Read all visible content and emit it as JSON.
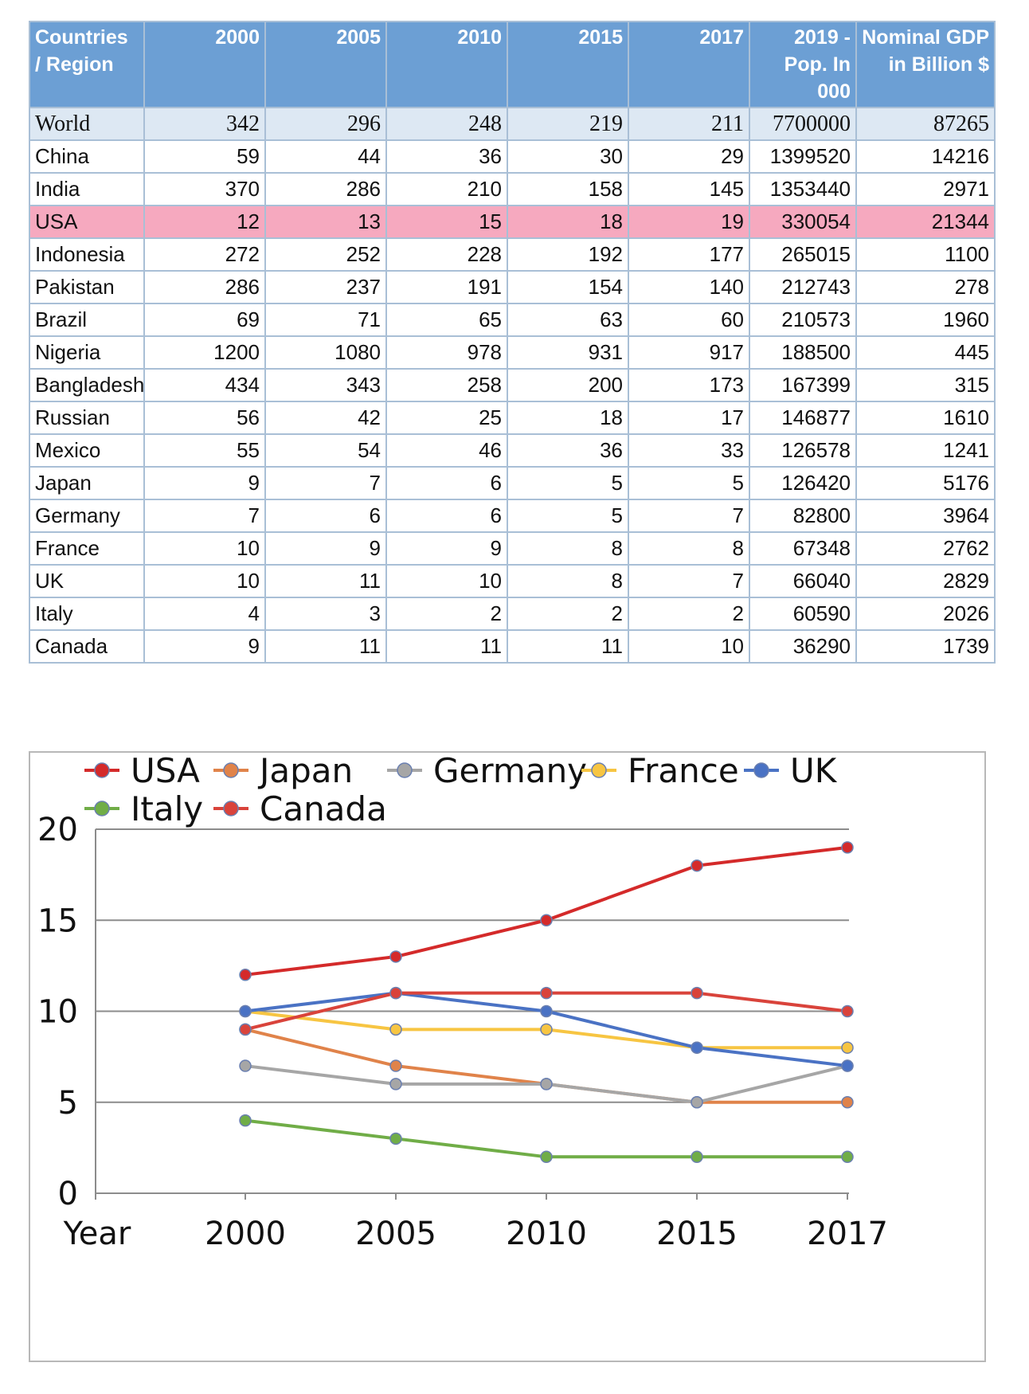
{
  "table": {
    "headers": [
      "Countries / Region",
      "2000",
      "2005",
      "2010",
      "2015",
      "2017",
      "2019 - Pop. In 000",
      "Nominal GDP in Billion $"
    ],
    "rows": [
      [
        "World",
        "342",
        "296",
        "248",
        "219",
        "211",
        "7700000",
        "87265"
      ],
      [
        "China",
        "59",
        "44",
        "36",
        "30",
        "29",
        "1399520",
        "14216"
      ],
      [
        "India",
        "370",
        "286",
        "210",
        "158",
        "145",
        "1353440",
        "2971"
      ],
      [
        "USA",
        "12",
        "13",
        "15",
        "18",
        "19",
        "330054",
        "21344"
      ],
      [
        "Indonesia",
        "272",
        "252",
        "228",
        "192",
        "177",
        "265015",
        "1100"
      ],
      [
        "Pakistan",
        "286",
        "237",
        "191",
        "154",
        "140",
        "212743",
        "278"
      ],
      [
        "Brazil",
        "69",
        "71",
        "65",
        "63",
        "60",
        "210573",
        "1960"
      ],
      [
        "Nigeria",
        "1200",
        "1080",
        "978",
        "931",
        "917",
        "188500",
        "445"
      ],
      [
        "Bangladesh",
        "434",
        "343",
        "258",
        "200",
        "173",
        "167399",
        "315"
      ],
      [
        "Russian",
        "56",
        "42",
        "25",
        "18",
        "17",
        "146877",
        "1610"
      ],
      [
        "Mexico",
        "55",
        "54",
        "46",
        "36",
        "33",
        "126578",
        "1241"
      ],
      [
        "Japan",
        "9",
        "7",
        "6",
        "5",
        "5",
        "126420",
        "5176"
      ],
      [
        "Germany",
        "7",
        "6",
        "6",
        "5",
        "7",
        "82800",
        "3964"
      ],
      [
        "France",
        "10",
        "9",
        "9",
        "8",
        "8",
        "67348",
        "2762"
      ],
      [
        "UK",
        "10",
        "11",
        "10",
        "8",
        "7",
        "66040",
        "2829"
      ],
      [
        "Italy",
        "4",
        "3",
        "2",
        "2",
        "2",
        "60590",
        "2026"
      ],
      [
        "Canada",
        "9",
        "11",
        "11",
        "11",
        "10",
        "36290",
        "1739"
      ]
    ],
    "colors": {
      "header_bg": "#6c9fd4",
      "world_bg": "#dde8f3",
      "highlight_bg": "#f6a9bf"
    }
  },
  "chart_data": {
    "type": "line",
    "title": "",
    "xlabel": "",
    "ylabel": "",
    "x_axis_first_label": "Year",
    "categories": [
      "2000",
      "2005",
      "2010",
      "2015",
      "2017"
    ],
    "ylim": [
      0,
      20
    ],
    "yticks": [
      "0",
      "5",
      "10",
      "15",
      "20"
    ],
    "grid": true,
    "legend_position": "top",
    "series": [
      {
        "name": "USA",
        "color": "#d42a2a",
        "values": [
          12,
          13,
          15,
          18,
          19
        ]
      },
      {
        "name": "Japan",
        "color": "#e0834a",
        "values": [
          9,
          7,
          6,
          5,
          5
        ]
      },
      {
        "name": "Germany",
        "color": "#a6a6a6",
        "values": [
          7,
          6,
          6,
          5,
          7
        ]
      },
      {
        "name": "France",
        "color": "#f7c542",
        "values": [
          10,
          9,
          9,
          8,
          8
        ]
      },
      {
        "name": "UK",
        "color": "#4a72c4",
        "values": [
          10,
          11,
          10,
          8,
          7
        ]
      },
      {
        "name": "Italy",
        "color": "#70ad47",
        "values": [
          4,
          3,
          2,
          2,
          2
        ]
      },
      {
        "name": "Canada",
        "color": "#d9433b",
        "values": [
          9,
          11,
          11,
          11,
          10
        ]
      }
    ]
  }
}
